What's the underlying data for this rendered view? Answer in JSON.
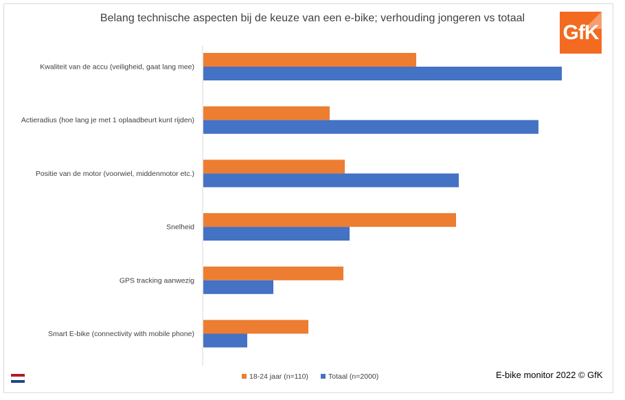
{
  "chart_data": {
    "type": "bar",
    "orientation": "horizontal",
    "title": "Belang technische aspecten bij de keuze van een e-bike; verhouding jongeren vs totaal",
    "categories": [
      "Kwaliteit van de accu (veiligheid, gaat lang mee)",
      "Actieradius (hoe lang je met 1 oplaadbeurt kunt rijden)",
      "Positie van de motor (voorwiel, middenmotor etc.)",
      "Snelheid",
      "GPS tracking aanwezig",
      "Smart E-bike (connectivity with mobile phone)"
    ],
    "series": [
      {
        "name": "18-24 jaar (n=110)",
        "color": "#ed7d31",
        "values": [
          310,
          184,
          206,
          368,
          204,
          153
        ]
      },
      {
        "name": "Totaal (n=2000)",
        "color": "#4472c4",
        "values": [
          522,
          488,
          372,
          213,
          102,
          64
        ]
      }
    ],
    "xlim": [
      0,
      600
    ],
    "axis_values_visible": false,
    "grid": false,
    "legend": "bottom"
  },
  "logo": {
    "text": "GfK",
    "color": "#f26b21"
  },
  "source": "E-bike monitor 2022  © GfK",
  "flag": {
    "name": "netherlands-flag",
    "colors": [
      "#ae1c28",
      "#ffffff",
      "#21468b"
    ]
  }
}
